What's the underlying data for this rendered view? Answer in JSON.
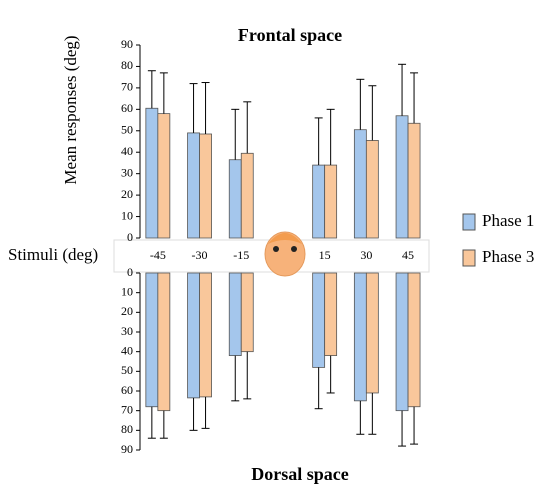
{
  "chart_data": [
    {
      "type": "bar",
      "title": "Frontal space",
      "y_label": "Mean responses (deg)",
      "x_label": "Stimuli (deg)",
      "categories": [
        "-45",
        "-30",
        "-15",
        "15",
        "30",
        "45"
      ],
      "series": [
        {
          "name": "Phase 1",
          "color": "#a4c6ec",
          "values": [
            60.5,
            49,
            36.5,
            34,
            50.5,
            57
          ],
          "errors": [
            17.5,
            23,
            23.5,
            22,
            23.5,
            24
          ]
        },
        {
          "name": "Phase 3",
          "color": "#f9c79b",
          "values": [
            58,
            48.5,
            39.5,
            34,
            45.5,
            53.5
          ],
          "errors": [
            19,
            24,
            24,
            26,
            25.5,
            23.5
          ]
        }
      ],
      "ylim": [
        0,
        90
      ],
      "yticks": [
        0,
        10,
        20,
        30,
        40,
        50,
        60,
        70,
        80,
        90
      ]
    },
    {
      "type": "bar",
      "title": "Dorsal space",
      "inverted": true,
      "series": [
        {
          "color": "#a4c6ec",
          "values": [
            68,
            63.5,
            42,
            48,
            65,
            70
          ],
          "errors": [
            16,
            16.5,
            23,
            21,
            17,
            18
          ]
        },
        {
          "color": "#f9c79b",
          "values": [
            70,
            63,
            40,
            42,
            61,
            68
          ],
          "errors": [
            14,
            16,
            24,
            19,
            21,
            19
          ]
        }
      ],
      "ylim": [
        0,
        90
      ],
      "yticks": [
        0,
        10,
        20,
        30,
        40,
        50,
        60,
        70,
        80,
        90
      ]
    }
  ]
}
